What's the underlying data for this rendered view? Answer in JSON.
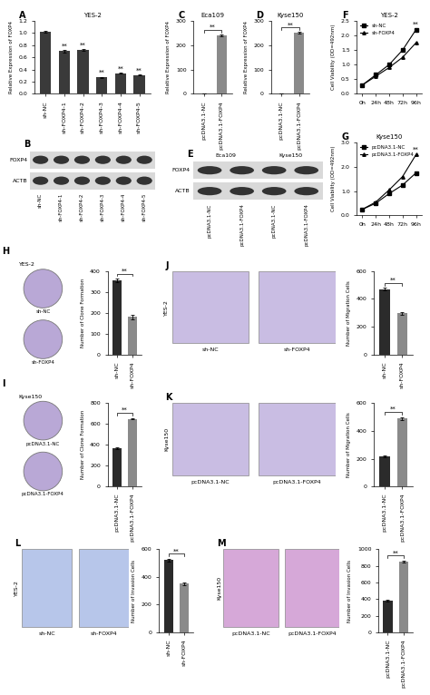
{
  "chart_data": [
    {
      "type": "bar",
      "panel": "A",
      "title": "YES-2",
      "categories": [
        "sh-NC",
        "sh-FOXP4-1",
        "sh-FOXP4-2",
        "sh-FOXP4-3",
        "sh-FOXP4-4",
        "sh-FOXP4-5"
      ],
      "values": [
        1.02,
        0.7,
        0.72,
        0.27,
        0.34,
        0.31
      ],
      "errors": [
        0.02,
        0.02,
        0.01,
        0.01,
        0.01,
        0.01
      ],
      "significance": [
        null,
        "**",
        "**",
        "**",
        "**",
        "**"
      ],
      "y_label": "Relative Expression of FOXP4",
      "color": "#3a3a3a",
      "ylim": [
        0,
        1.2
      ],
      "yticks": [
        {
          "value": 0,
          "label": "0.0"
        },
        0.2,
        0.4,
        0.6,
        0.8,
        {
          "value": 1,
          "label": "1.0"
        },
        1.2
      ]
    },
    {
      "type": "bar",
      "panel": "C",
      "title": "Eca109",
      "categories": [
        "pcDNA3.1-NC",
        "pcDNA3.1-FOXP4"
      ],
      "values": [
        1,
        240
      ],
      "errors": [
        0.1,
        4
      ],
      "bracket": "**",
      "y_label": "Relative Expression of FOXP4",
      "colors": [
        "#2b2b2b",
        "#8a8a8a"
      ],
      "ylim": [
        0,
        300
      ],
      "yticks": [
        0,
        100,
        200,
        300
      ]
    },
    {
      "type": "bar",
      "panel": "D",
      "title": "Kyse150",
      "categories": [
        "pcDNA3.1-NC",
        "pcDNA3.1-FOXP4"
      ],
      "values": [
        1,
        250
      ],
      "errors": [
        0.1,
        4
      ],
      "bracket": "**",
      "y_label": "Relative Expression of FOXP4",
      "colors": [
        "#2b2b2b",
        "#8a8a8a"
      ],
      "ylim": [
        0,
        300
      ],
      "yticks": [
        0,
        100,
        200,
        300
      ]
    },
    {
      "type": "line",
      "panel": "F",
      "title": "YES-2",
      "y_label": "Cell Viability (OD=492nm)",
      "categories": [
        "0h",
        "24h",
        "48h",
        "72h",
        "96h"
      ],
      "series": [
        {
          "name": "sh-NC",
          "color": "#000000",
          "marker": "square",
          "values": [
            0.3,
            0.65,
            1.0,
            1.5,
            2.2
          ]
        },
        {
          "name": "sh-FOXP4",
          "color": "#000000",
          "marker": "triangle",
          "values": [
            0.3,
            0.6,
            0.9,
            1.25,
            1.75
          ]
        }
      ],
      "significance": [
        null,
        null,
        null,
        null,
        "**"
      ],
      "legend": "upper left",
      "ylim": [
        0,
        2.5
      ],
      "yticks": [
        {
          "value": 0,
          "label": "0.0"
        },
        0.5,
        {
          "value": 1,
          "label": "1.0"
        },
        1.5,
        {
          "value": 2,
          "label": "2.0"
        },
        2.5
      ]
    },
    {
      "type": "line",
      "panel": "G",
      "title": "Kyse150",
      "y_label": "Cell Viability (OD=492nm)",
      "categories": [
        "0h",
        "24h",
        "48h",
        "72h",
        "96h"
      ],
      "series": [
        {
          "name": "pcDNA3.1-NC",
          "color": "#000000",
          "marker": "square",
          "values": [
            0.25,
            0.5,
            0.9,
            1.25,
            1.75
          ]
        },
        {
          "name": "pcDNA3.1-FOXP4",
          "color": "#000000",
          "marker": "triangle",
          "values": [
            0.25,
            0.55,
            1.05,
            1.6,
            2.5
          ]
        }
      ],
      "significance": [
        null,
        null,
        null,
        null,
        "**"
      ],
      "legend": "upper left",
      "ylim": [
        0,
        3
      ],
      "yticks": [
        {
          "value": 0,
          "label": "0.0"
        },
        {
          "value": 1,
          "label": "1.0"
        },
        {
          "value": 2,
          "label": "2.0"
        },
        {
          "value": 3,
          "label": "3.0"
        }
      ]
    },
    {
      "type": "bar",
      "categories": [
        "sh-NC",
        "sh-FOXP4"
      ],
      "values": [
        355,
        180
      ],
      "errors": [
        8,
        10
      ],
      "bracket": "**",
      "y_label": "Number of Clone Formation",
      "colors": [
        "#2b2b2b",
        "#8a8a8a"
      ],
      "ylim": [
        0,
        400
      ],
      "yticks": [
        0,
        100,
        200,
        300,
        400
      ]
    },
    {
      "type": "bar",
      "categories": [
        "pcDNA3.1-NC",
        "pcDNA3.1-FOXP4"
      ],
      "values": [
        370,
        650
      ],
      "errors": [
        10,
        8
      ],
      "bracket": "**",
      "y_label": "Number of Clone Formation",
      "colors": [
        "#2b2b2b",
        "#8a8a8a"
      ],
      "ylim": [
        0,
        800
      ],
      "yticks": [
        0,
        200,
        400,
        600,
        800
      ]
    },
    {
      "type": "bar",
      "categories": [
        "sh-NC",
        "sh-FOXP4"
      ],
      "values": [
        470,
        295
      ],
      "errors": [
        8,
        8
      ],
      "bracket": "**",
      "y_label": "Number of Migration Cells",
      "colors": [
        "#2b2b2b",
        "#8a8a8a"
      ],
      "ylim": [
        0,
        600
      ],
      "yticks": [
        0,
        200,
        400,
        600
      ]
    },
    {
      "type": "bar",
      "categories": [
        "pcDNA3.1-NC",
        "pcDNA3.1-FOXP4"
      ],
      "values": [
        215,
        490
      ],
      "errors": [
        6,
        10
      ],
      "bracket": "**",
      "y_label": "Number of Migration Cells",
      "colors": [
        "#2b2b2b",
        "#8a8a8a"
      ],
      "ylim": [
        0,
        600
      ],
      "yticks": [
        0,
        200,
        400,
        600
      ]
    },
    {
      "type": "bar",
      "categories": [
        "sh-NC",
        "sh-FOXP4"
      ],
      "values": [
        520,
        350
      ],
      "errors": [
        10,
        8
      ],
      "bracket": "**",
      "y_label": "Number of Invasion Cells",
      "colors": [
        "#2b2b2b",
        "#8a8a8a"
      ],
      "ylim": [
        0,
        600
      ],
      "yticks": [
        0,
        200,
        400,
        600
      ]
    },
    {
      "type": "bar",
      "categories": [
        "pcDNA3.1-NC",
        "pcDNA3.1-FOXP4"
      ],
      "values": [
        380,
        850
      ],
      "errors": [
        10,
        12
      ],
      "bracket": "**",
      "y_label": "Number of Invasion Cells",
      "colors": [
        "#2b2b2b",
        "#8a8a8a"
      ],
      "ylim": [
        0,
        1000
      ],
      "yticks": [
        0,
        200,
        400,
        600,
        800,
        1000
      ]
    }
  ],
  "images": [
    {
      "type": "blot",
      "panel": "B",
      "rows": [
        "FOXP4",
        "ACTB"
      ],
      "lanes": [
        "sh-NC",
        "sh-FOXP4-1",
        "sh-FOXP4-2",
        "sh-FOXP4-3",
        "sh-FOXP4-4",
        "sh-FOXP4-5"
      ]
    },
    {
      "type": "blot",
      "panel": "E",
      "rows": [
        "FOXP4",
        "ACTB"
      ],
      "groups": [
        "Eca109",
        "Kyse150"
      ],
      "lanes": [
        "pcDNA3.1-NC",
        "pcDNA3.1-FOXP4",
        "pcDNA3.1-NC",
        "pcDNA3.1-FOXP4"
      ]
    },
    {
      "type": "dish",
      "panel": "H",
      "cell_line": "YES-2",
      "labels": [
        "sh-NC",
        "sh-FOXP4"
      ],
      "color": "#b9a8d6"
    },
    {
      "type": "dish",
      "panel": "I",
      "cell_line": "Kyse150",
      "labels": [
        "pcDNA3.1-NC",
        "pcDNA3.1-FOXP4"
      ],
      "color": "#b9a8d6"
    },
    {
      "type": "micro",
      "panel": "J",
      "cell_line": "YES-2",
      "labels": [
        "sh-NC",
        "sh-FOXP4"
      ],
      "color": "#c9bde3"
    },
    {
      "type": "micro",
      "panel": "K",
      "cell_line": "Kyse150",
      "labels": [
        "pcDNA3.1-NC",
        "pcDNA3.1-FOXP4"
      ],
      "color": "#c9bde3"
    },
    {
      "type": "micro",
      "panel": "L",
      "cell_line": "YES-2",
      "labels": [
        "sh-NC",
        "sh-FOXP4"
      ],
      "color": "#b7c6ea"
    },
    {
      "type": "micro",
      "panel": "M",
      "cell_line": "Kyse150",
      "labels": [
        "pcDNA3.1-NC",
        "pcDNA3.1-FOXP4"
      ],
      "color": "#d6a8d8"
    }
  ]
}
